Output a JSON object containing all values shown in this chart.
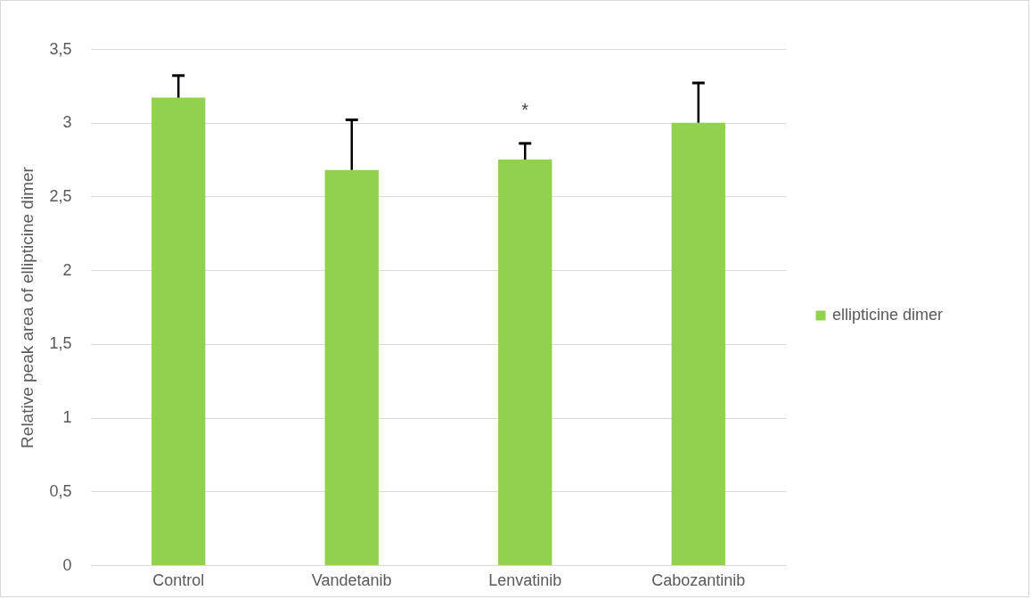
{
  "chart_data": {
    "type": "bar",
    "categories": [
      "Control",
      "Vandetanib",
      "Lenvatinib",
      "Cabozantinib"
    ],
    "series": [
      {
        "name": "ellipticine dimer",
        "color": "#92d050",
        "values": [
          3.17,
          2.68,
          2.75,
          3.0
        ],
        "errors": [
          [
            3.17,
            3.32
          ],
          [
            2.68,
            3.02
          ],
          [
            2.75,
            2.86
          ],
          [
            3.0,
            3.27
          ]
        ]
      }
    ],
    "ylabel": "Relative peak area of ellipticine dimer",
    "ylim": [
      0,
      3.5
    ],
    "yticks": [
      {
        "value": 0,
        "label": "0"
      },
      {
        "value": 0.5,
        "label": "0,5"
      },
      {
        "value": 1,
        "label": "1"
      },
      {
        "value": 1.5,
        "label": "1,5"
      },
      {
        "value": 2,
        "label": "2"
      },
      {
        "value": 2.5,
        "label": "2,5"
      },
      {
        "value": 3,
        "label": "3"
      },
      {
        "value": 3.5,
        "label": "3,5"
      }
    ],
    "grid": "y",
    "legend": "right",
    "annotations": [
      "*"
    ]
  }
}
